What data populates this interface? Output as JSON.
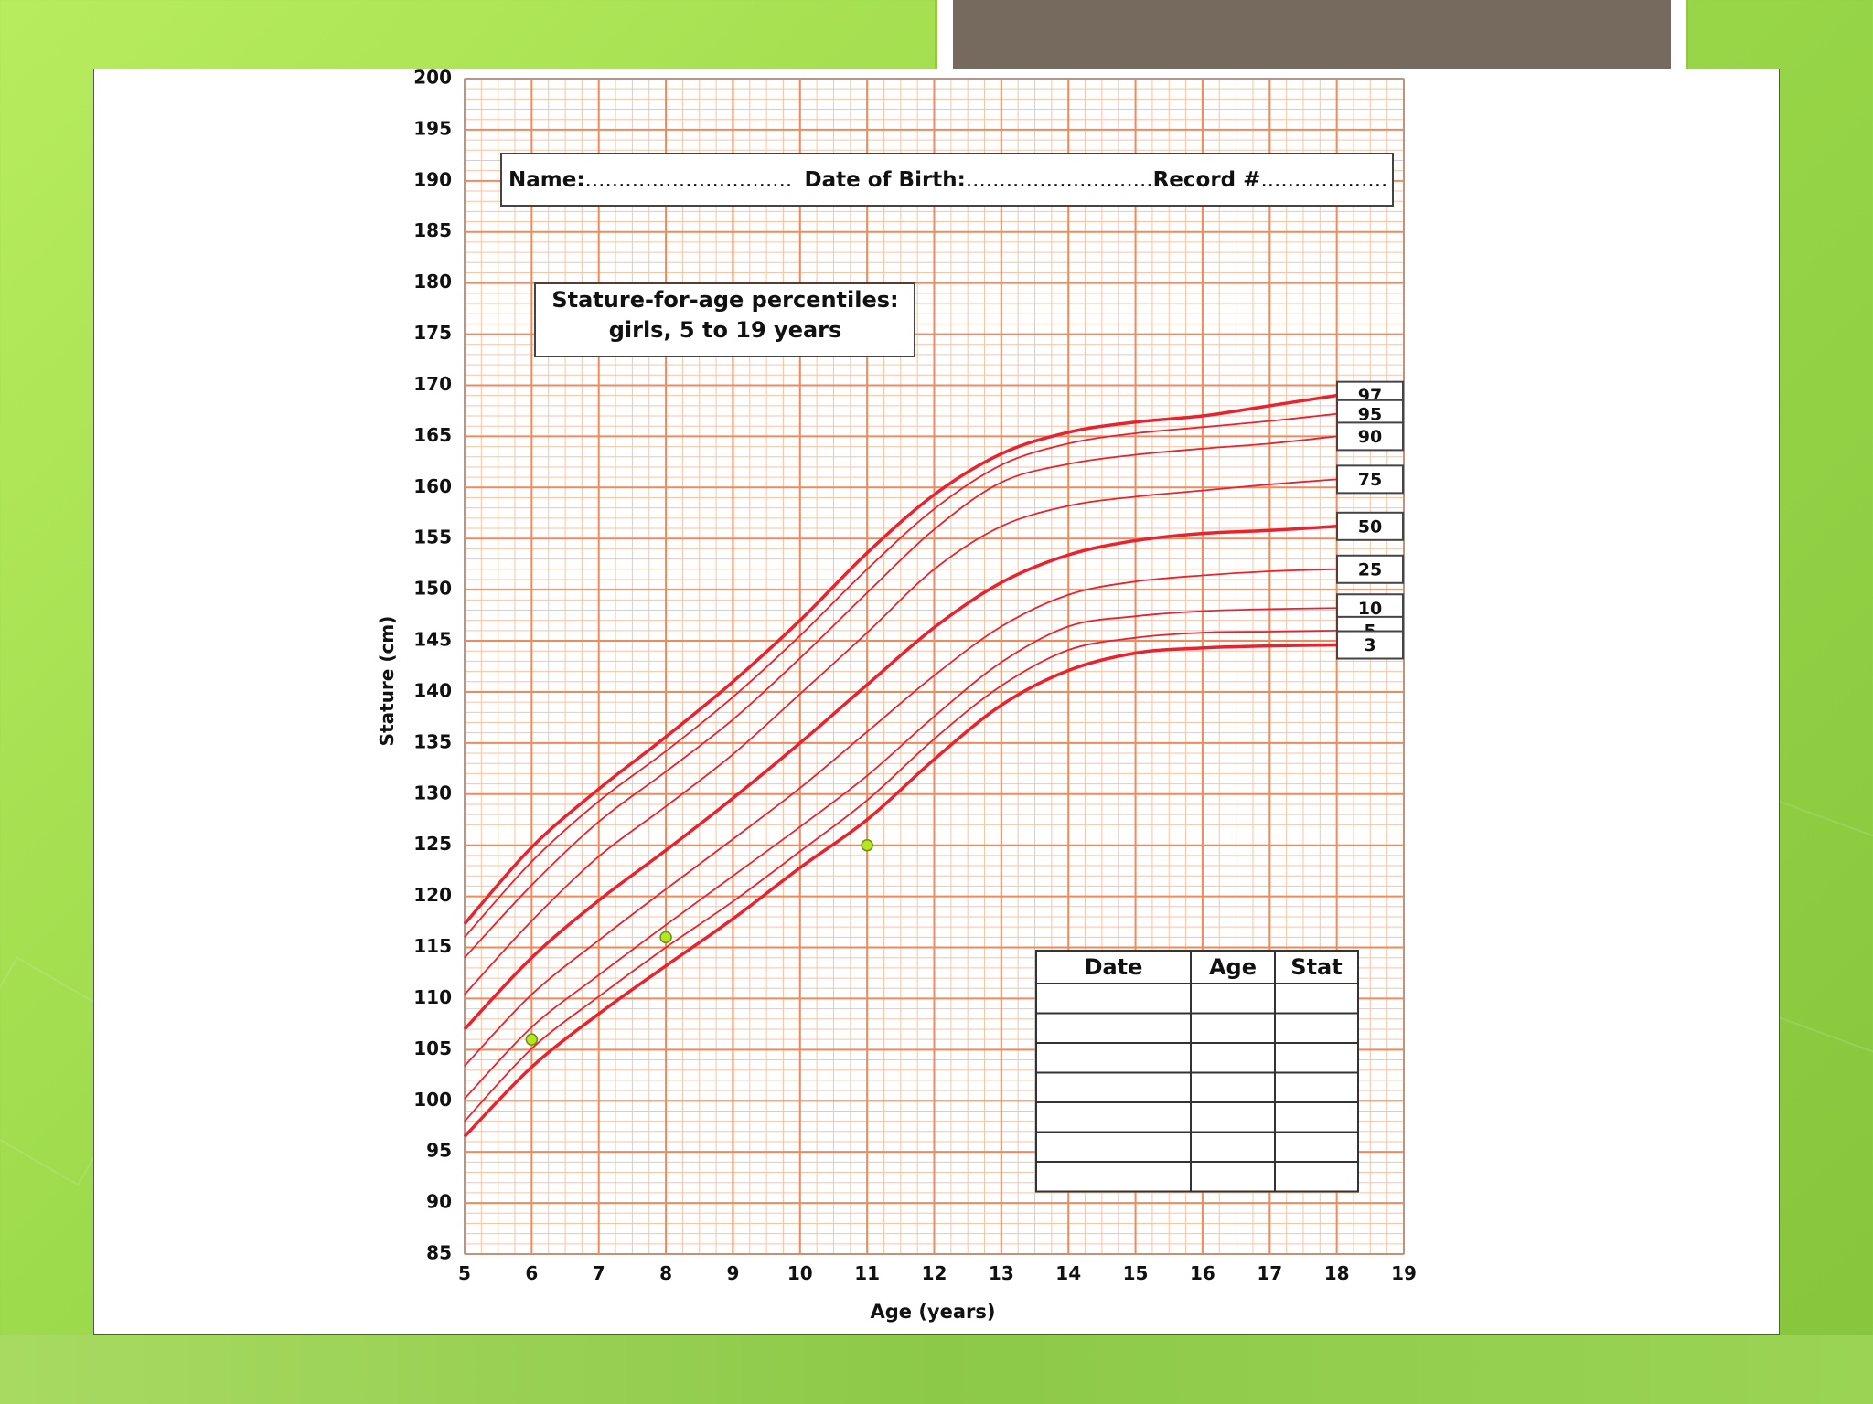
{
  "colors": {
    "major_grid": "#f08a5b",
    "minor_grid": "#f6c4a6",
    "curve": "#e8232f",
    "marker": "#b6e61f"
  },
  "header": {
    "name_label": "Name:",
    "date_of_birth_label": "Date of Birth:",
    "record_label": "Record #"
  },
  "chart_data": {
    "type": "line",
    "title": "Stature-for-age percentiles:",
    "subtitle": "girls, 5 to 19 years",
    "xlabel": "Age (years)",
    "ylabel": "Stature (cm)",
    "xlim": [
      5,
      19
    ],
    "ylim": [
      85,
      200
    ],
    "x_ticks": [
      "5",
      "6",
      "7",
      "8",
      "9",
      "10",
      "11",
      "12",
      "13",
      "14",
      "15",
      "16",
      "17",
      "18",
      "19"
    ],
    "y_ticks": [
      "200",
      "195",
      "190",
      "185",
      "180",
      "175",
      "170",
      "165",
      "160",
      "155",
      "150",
      "145",
      "140",
      "135",
      "130",
      "125",
      "120",
      "115",
      "110",
      "105",
      "100",
      "95",
      "90",
      "85"
    ],
    "grid": true,
    "x": [
      5,
      6,
      7,
      8,
      9,
      10,
      11,
      12,
      13,
      14,
      15,
      16,
      17,
      18
    ],
    "series": [
      {
        "name": "97",
        "bold": true,
        "values": [
          117.3,
          124.8,
          130.5,
          135.6,
          141.0,
          147.0,
          153.6,
          159.3,
          163.3,
          165.4,
          166.4,
          167.0,
          168.0,
          169.0
        ]
      },
      {
        "name": "95",
        "bold": false,
        "values": [
          116.0,
          123.4,
          129.3,
          134.2,
          139.5,
          145.5,
          152.0,
          157.9,
          162.2,
          164.3,
          165.3,
          165.9,
          166.5,
          167.2
        ]
      },
      {
        "name": "90",
        "bold": false,
        "values": [
          114.0,
          121.1,
          127.3,
          132.2,
          137.3,
          143.3,
          149.7,
          155.9,
          160.5,
          162.3,
          163.2,
          163.8,
          164.3,
          165.0
        ]
      },
      {
        "name": "75",
        "bold": false,
        "values": [
          110.4,
          117.6,
          123.9,
          128.8,
          133.9,
          139.8,
          145.8,
          152.0,
          156.2,
          158.2,
          159.1,
          159.7,
          160.3,
          160.8
        ]
      },
      {
        "name": "50",
        "bold": true,
        "values": [
          107.0,
          114.0,
          119.6,
          124.5,
          129.6,
          135.0,
          140.7,
          146.3,
          150.7,
          153.4,
          154.8,
          155.5,
          155.8,
          156.2
        ]
      },
      {
        "name": "25",
        "bold": false,
        "values": [
          103.4,
          110.4,
          115.7,
          120.7,
          125.6,
          130.6,
          136.1,
          141.6,
          146.4,
          149.5,
          150.8,
          151.4,
          151.8,
          152.0
        ]
      },
      {
        "name": "10",
        "bold": false,
        "values": [
          100.2,
          107.2,
          112.3,
          117.2,
          122.0,
          126.8,
          131.8,
          137.6,
          142.9,
          146.4,
          147.4,
          147.9,
          148.1,
          148.2
        ]
      },
      {
        "name": "5",
        "bold": false,
        "values": [
          98.0,
          105.1,
          110.2,
          115.0,
          119.5,
          124.4,
          129.4,
          135.4,
          140.6,
          144.1,
          145.3,
          145.8,
          145.9,
          146.0
        ]
      },
      {
        "name": "3",
        "bold": true,
        "values": [
          96.5,
          103.3,
          108.5,
          113.2,
          117.8,
          122.8,
          127.5,
          133.4,
          138.7,
          142.1,
          143.8,
          144.3,
          144.5,
          144.6
        ]
      }
    ],
    "measurements": [
      {
        "x": 6,
        "y": 106
      },
      {
        "x": 8,
        "y": 116
      },
      {
        "x": 11,
        "y": 125
      }
    ],
    "record_table": {
      "headers": [
        "Date",
        "Age",
        "Stat"
      ],
      "rows": 7
    }
  }
}
